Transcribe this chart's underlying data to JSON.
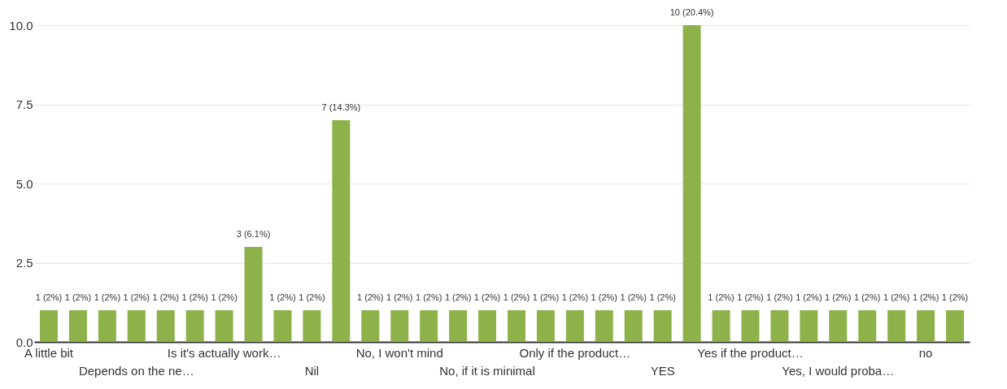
{
  "chart_data": {
    "type": "bar",
    "categories": [
      "A little bit",
      null,
      null,
      "Depends on the ne…",
      null,
      null,
      "Is it's actually work…",
      null,
      null,
      "Nil",
      null,
      null,
      "No, I won't mind",
      null,
      null,
      "No, if it is minimal",
      null,
      null,
      "Only if the product…",
      null,
      null,
      "YES",
      null,
      null,
      "Yes if the product…",
      null,
      null,
      "Yes, I would proba…",
      null,
      null,
      "no",
      null
    ],
    "values": [
      1,
      1,
      1,
      1,
      1,
      1,
      1,
      3,
      1,
      1,
      7,
      1,
      1,
      1,
      1,
      1,
      1,
      1,
      1,
      1,
      1,
      1,
      10,
      1,
      1,
      1,
      1,
      1,
      1,
      1,
      1,
      1
    ],
    "value_labels": [
      "1 (2%)",
      "1 (2%)",
      "1 (2%)",
      "1 (2%)",
      "1 (2%)",
      "1 (2%)",
      "1 (2%)",
      "3 (6.1%)",
      "1 (2%)",
      "1 (2%)",
      "7 (14.3%)",
      "1 (2%)",
      "1 (2%)",
      "1 (2%)",
      "1 (2%)",
      "1 (2%)",
      "1 (2%)",
      "1 (2%)",
      "1 (2%)",
      "1 (2%)",
      "1 (2%)",
      "1 (2%)",
      "10 (20.4%)",
      "1 (2%)",
      "1 (2%)",
      "1 (2%)",
      "1 (2%)",
      "1 (2%)",
      "1 (2%)",
      "1 (2%)",
      "1 (2%)",
      "1 (2%)"
    ],
    "color": "#8db24a",
    "ylim": [
      0,
      10
    ],
    "yticks": [
      {
        "value": 0,
        "label": "0.0"
      },
      {
        "value": 2.5,
        "label": "2.5"
      },
      {
        "value": 5,
        "label": "5.0"
      },
      {
        "value": 7.5,
        "label": "7.5"
      },
      {
        "value": 10,
        "label": "10.0"
      }
    ],
    "grid": "y"
  }
}
